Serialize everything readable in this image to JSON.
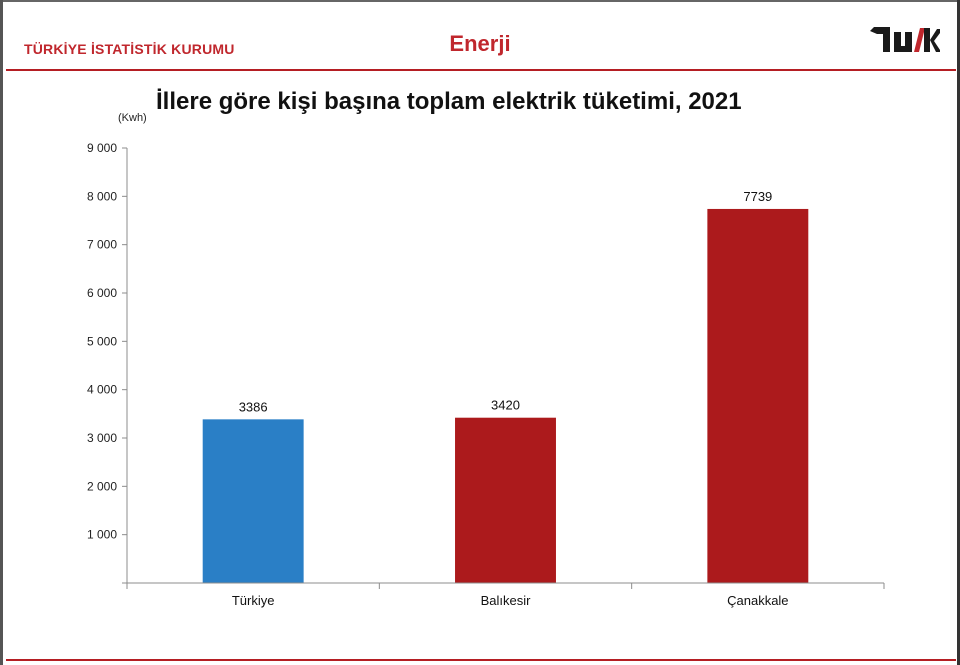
{
  "header": {
    "organization": "TÜRKİYE İSTATİSTİK KURUMU",
    "section": "Enerji",
    "logo_text": "TÜİK",
    "accent_color": "#c0272d"
  },
  "chart_data": {
    "type": "bar",
    "title": "İllere göre kişi başına toplam elektrik tüketimi, 2021",
    "unit": "(Kwh)",
    "categories": [
      "Türkiye",
      "Balıkesir",
      "Çanakkale"
    ],
    "values": [
      3386,
      3420,
      7739
    ],
    "data_labels": [
      "3386",
      "3420",
      "7739"
    ],
    "colors": [
      "#2a7fc6",
      "#ac1a1c",
      "#ac1a1c"
    ],
    "yticks": [
      0,
      1000,
      2000,
      3000,
      4000,
      5000,
      6000,
      7000,
      8000,
      9000
    ],
    "ytick_labels": [
      "",
      "1 000",
      "2 000",
      "3 000",
      "4 000",
      "5 000",
      "6 000",
      "7 000",
      "8 000",
      "9 000"
    ],
    "ylim": [
      0,
      9000
    ],
    "grid": false,
    "legend": "none"
  }
}
